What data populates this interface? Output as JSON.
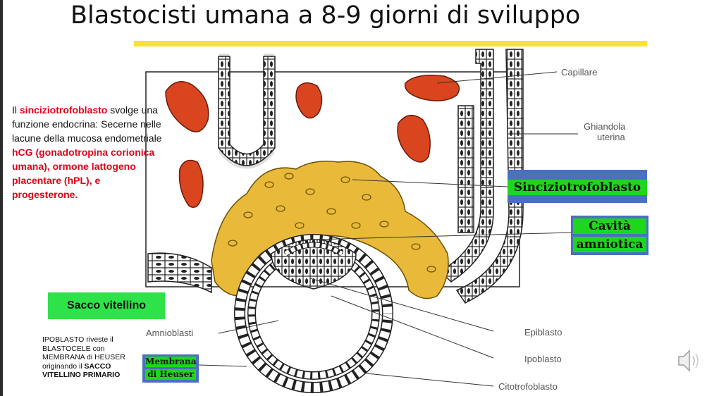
{
  "slide": {
    "title": "Blastocisti umana a 8-9 giorni di sviluppo"
  },
  "description": {
    "t1": "Il ",
    "h1": "sinciziotrofoblasto",
    "t2": " svolge una funzione endocrina: Secerne nelle lacune della mucosa endometriale ",
    "h2": "hCG (gonadotropina corionica umana), ormone lattogeno placentare (hPL), e progesterone."
  },
  "tags": {
    "sinciziotrofoblasto": "Sinciziotrofoblasto",
    "cavita_1": "Cavità",
    "cavita_2": "amniotica",
    "sacco_vitellino": "Sacco vitellino",
    "membrana_1": "Membrana",
    "membrana_2": "di Heuser"
  },
  "ipoblasto_note": {
    "t1": "IPOBLASTO riveste il BLASTOCELE con MEMBRANA di HEUSER originando il ",
    "b1": "SACCO VITELLINO PRIMARIO"
  },
  "diagram_labels": {
    "capillare": "Capillare",
    "ghiandola_1": "Ghiandola",
    "ghiandola_2": "uterina",
    "amnioblasti": "Amnioblasti",
    "epiblasto": "Epiblasto",
    "ipoblasto": "Ipoblasto",
    "citotrofoblasto": "Citotrofoblasto"
  },
  "icons": {
    "speaker": "speaker-icon"
  },
  "colors": {
    "title_highlight": "#e0001a",
    "tag_green": "#1fd61f",
    "tag_blue": "#4a70c0",
    "trophoblast_yellow": "#e9b93a",
    "blood_red": "#d9451f",
    "header_bar": "#f7e23a"
  }
}
